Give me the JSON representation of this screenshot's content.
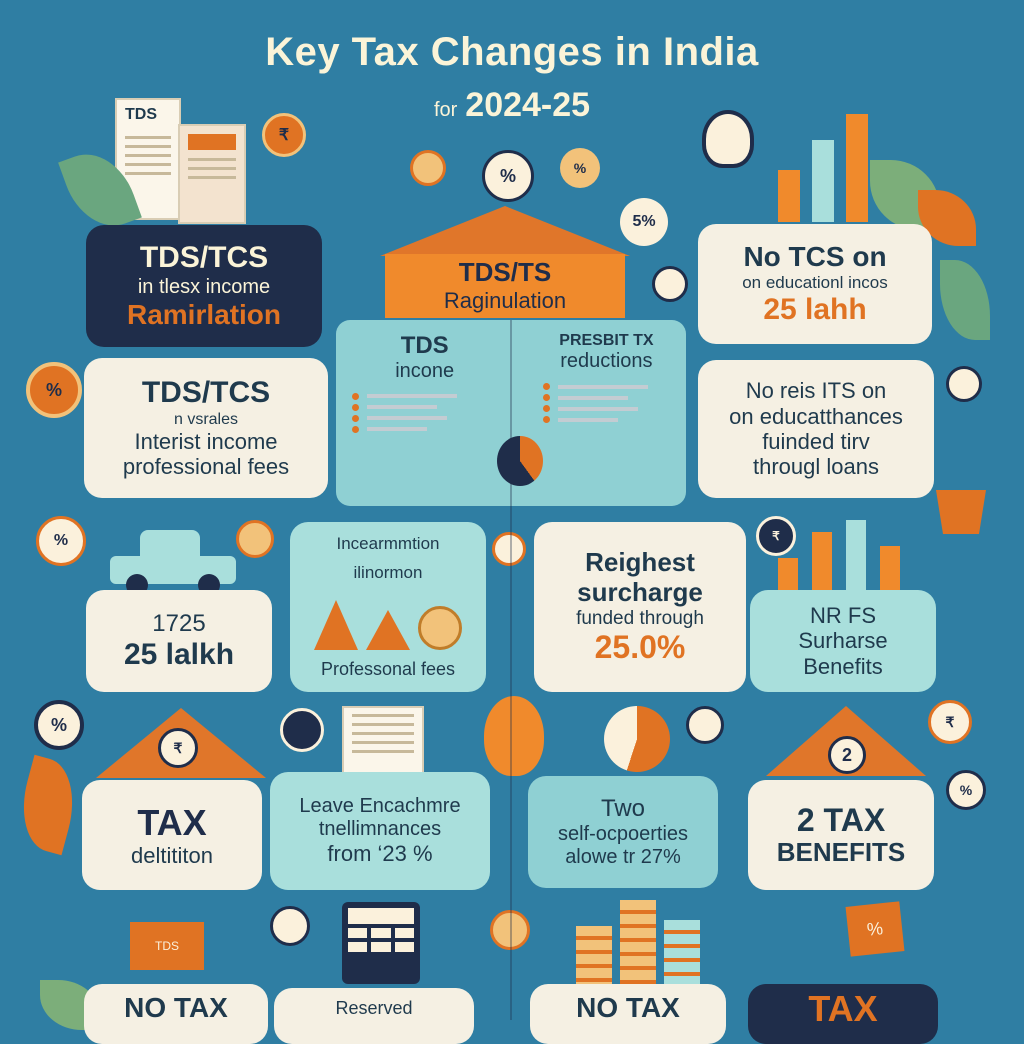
{
  "header": {
    "title": "Key Tax Changes in India",
    "for": "for",
    "year": "2024-25"
  },
  "cards": {
    "tds_remit": {
      "line1": "TDS/TCS",
      "line2": "in tlesx income",
      "line3": "Ramirlation"
    },
    "tds_ts": {
      "line1": "TDS/TS",
      "line2": "Raginulation"
    },
    "no_tcs_edu": {
      "line1": "No TCS on",
      "line2": "on educationl incos",
      "line3": "25 lahh"
    },
    "tds_interest": {
      "line1": "TDS/TCS",
      "line2": "n vsrales",
      "line3": "Interist income",
      "line4": "professional fees"
    },
    "tds_income": {
      "line1": "TDS",
      "line2": "incone"
    },
    "present_tax": {
      "line1": "PRESBIT TX",
      "line2": "reductions"
    },
    "no_tps_edu": {
      "line1": "No reis ITS on",
      "line2": "on educatthances",
      "line3": "fuinded tirv",
      "line4": "througl loans"
    },
    "limit_1725": {
      "line1": "1725",
      "line2": "25 lalkh"
    },
    "info": {
      "line1": "Incearmmtion",
      "line2": "ilinormon",
      "line3": "Professonal fees"
    },
    "surcharge": {
      "line1": "Reighest",
      "line2": "surcharge",
      "line3": "funded through",
      "line4": "25.0%"
    },
    "nr_fs": {
      "line1": "NR FS",
      "line2": "Surharse",
      "line3": "Benefits"
    },
    "tax_deduction": {
      "line1": "TAX",
      "line2": "deltititon"
    },
    "leave": {
      "line1": "Leave Encachmre",
      "line2": "tnellimnances",
      "line3": "from ‘23 %"
    },
    "self_occ": {
      "line1": "Two",
      "line2": "self-ocpoerties",
      "line3": "alowe tr 27%"
    },
    "two_tax": {
      "line1": "2 TAX",
      "line2": "BENEFITS"
    },
    "bottom": {
      "no_tax_1": "NO TAX",
      "no_tax_2": "NO TAX",
      "tax": "TAX",
      "reserved": "Reserved"
    }
  },
  "icons": {
    "percent": "%",
    "rupee_doc": "TDS",
    "pct5": "5%",
    "two": "2",
    "tax_stamp": "TAX"
  },
  "colors": {
    "background": "#2f7ea3",
    "cream": "#f5f0e3",
    "navy": "#1f2d4a",
    "orange": "#e07323",
    "teal": "#8fd0d3"
  }
}
